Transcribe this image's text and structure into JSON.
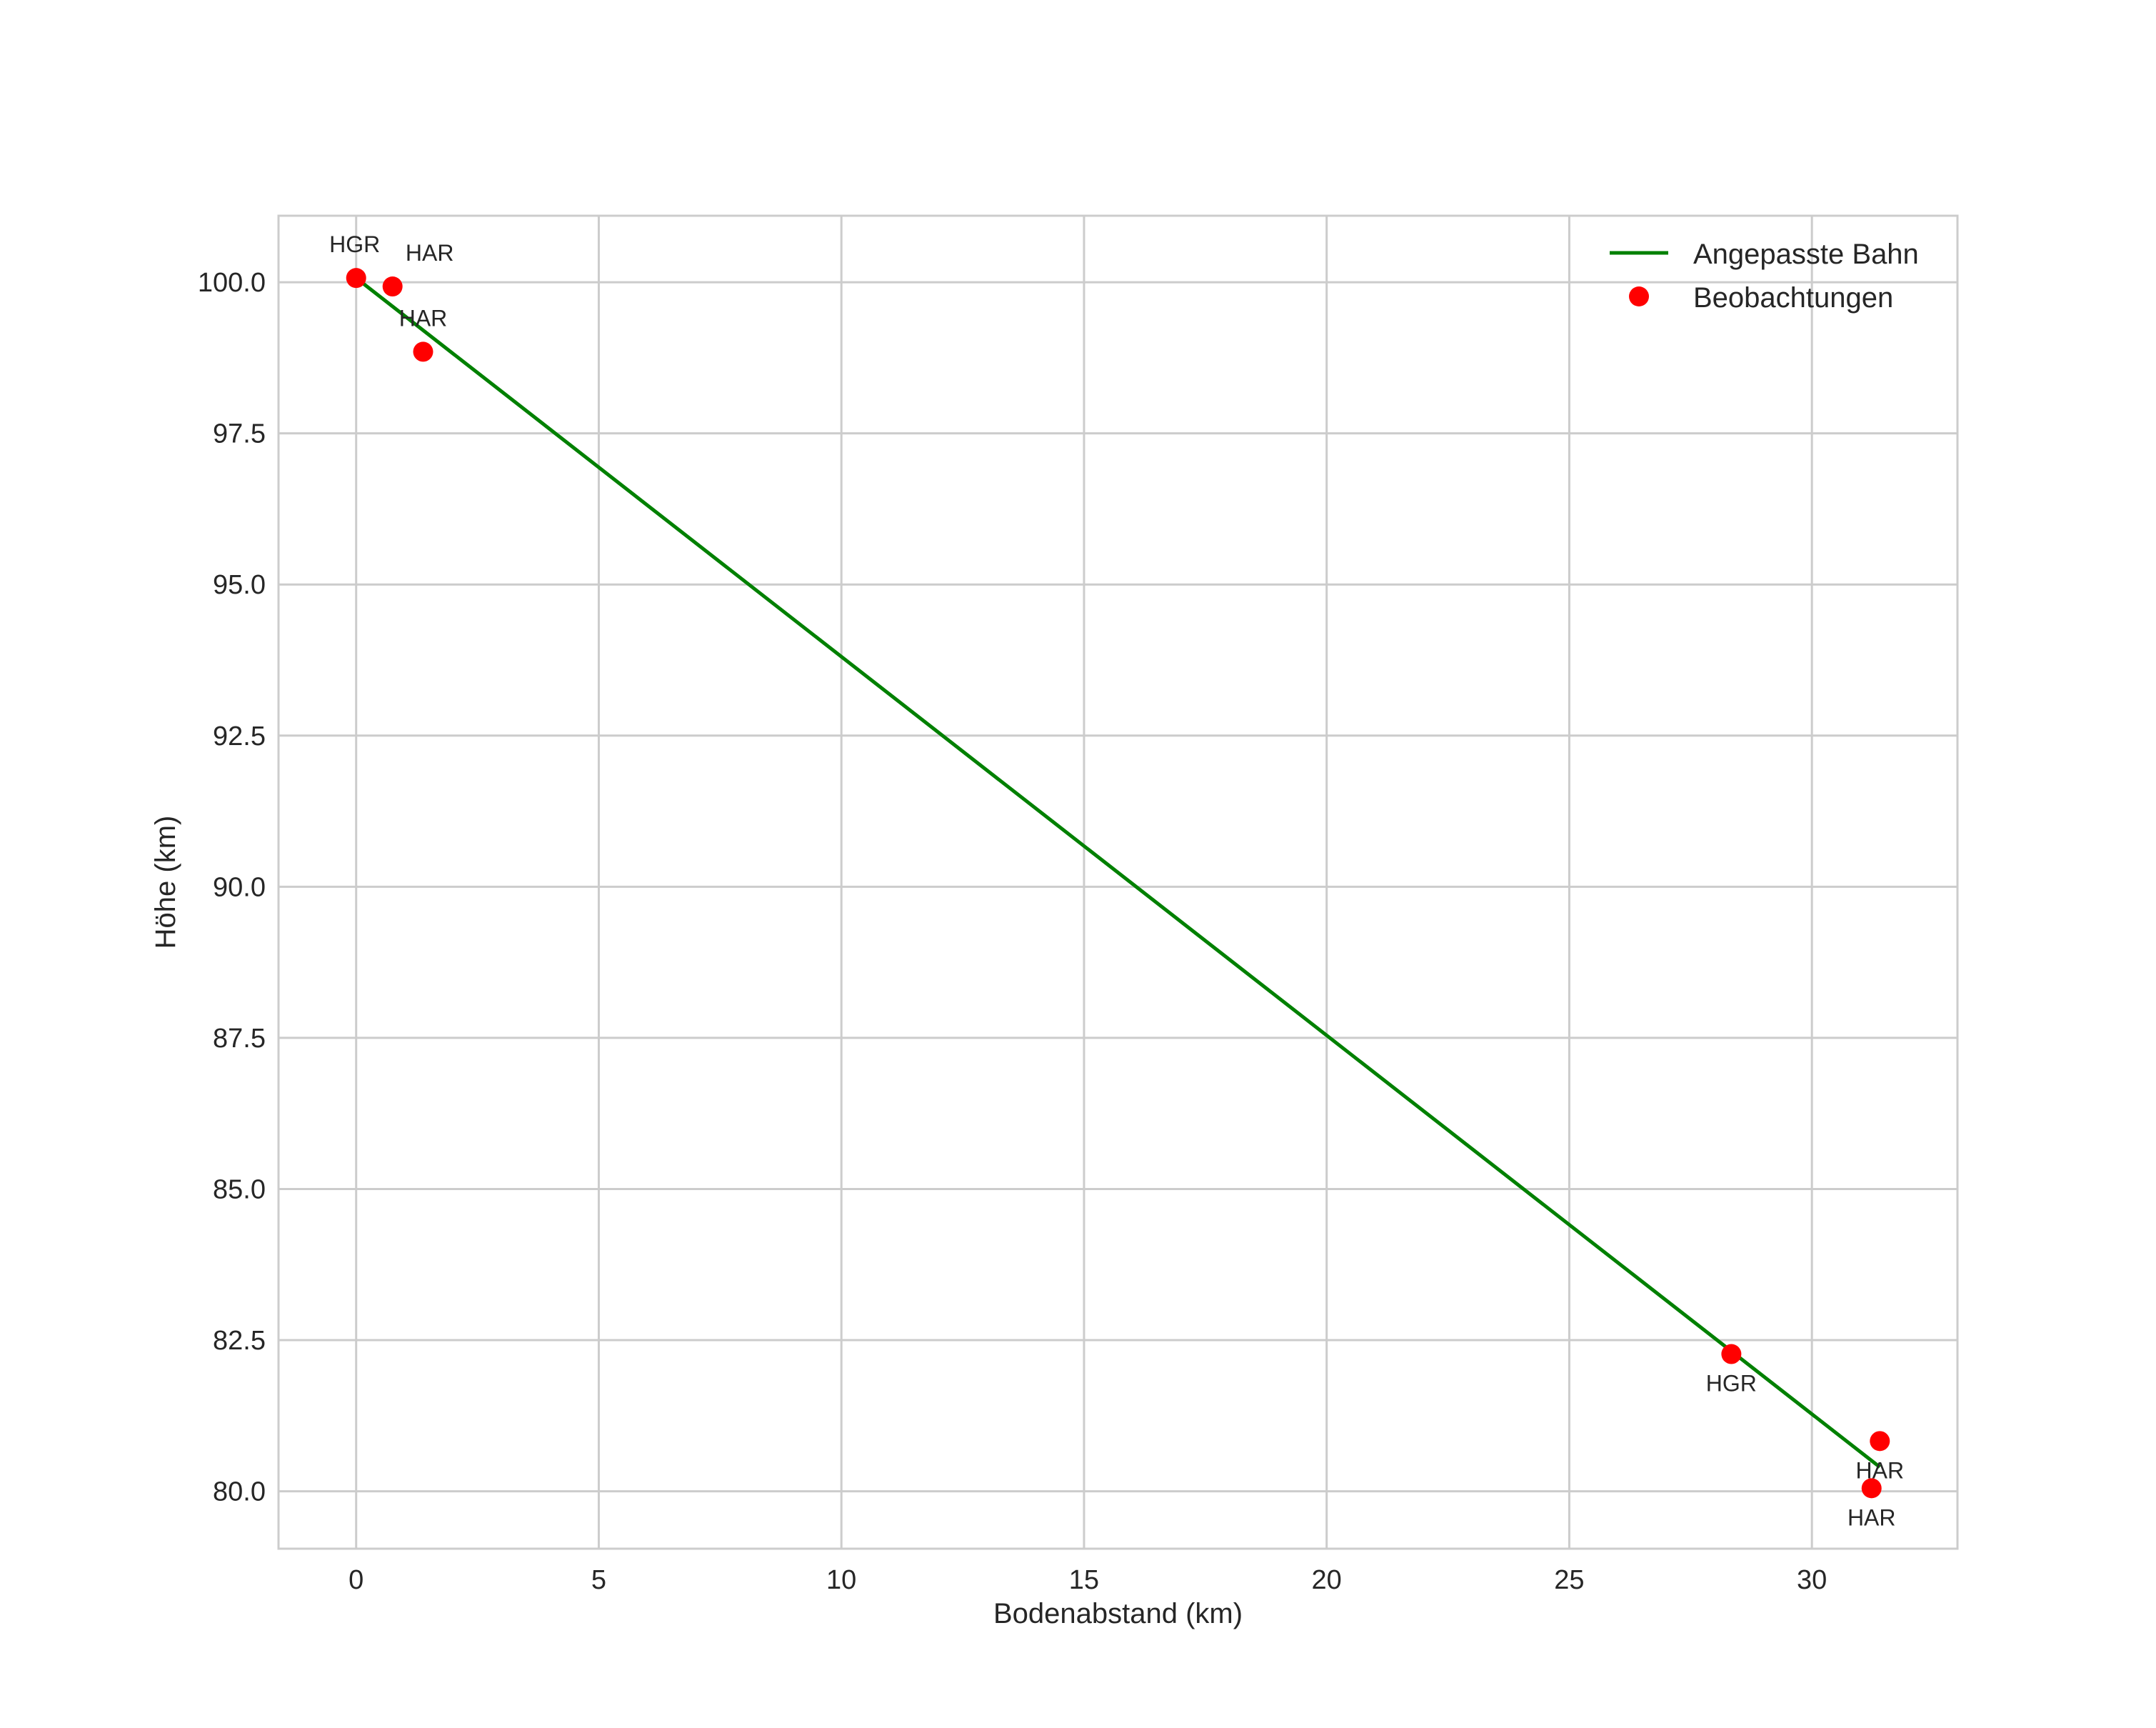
{
  "chart_data": {
    "type": "line",
    "title": "",
    "xlabel": "Bodenabstand (km)",
    "ylabel": "Höhe (km)",
    "xlim": [
      -1.6,
      33.0
    ],
    "ylim": [
      79.05,
      101.1
    ],
    "xticks": [
      0,
      5,
      10,
      15,
      20,
      25,
      30
    ],
    "xtick_labels": [
      "0",
      "5",
      "10",
      "15",
      "20",
      "25",
      "30"
    ],
    "yticks": [
      80.0,
      82.5,
      85.0,
      87.5,
      90.0,
      92.5,
      95.0,
      97.5,
      100.0
    ],
    "ytick_labels": [
      "80.0",
      "82.5",
      "85.0",
      "87.5",
      "90.0",
      "92.5",
      "95.0",
      "97.5",
      "100.0"
    ],
    "grid": true,
    "legend_position": "upper right",
    "series": [
      {
        "name": "Angepasste Bahn",
        "type": "line",
        "color": "#008000",
        "x": [
          0.0,
          31.4
        ],
        "y": [
          100.07,
          80.4
        ]
      },
      {
        "name": "Beobachtungen",
        "type": "scatter",
        "color": "#ff0000",
        "x": [
          0.0,
          0.75,
          1.38,
          28.34,
          31.4,
          31.23
        ],
        "y": [
          100.07,
          99.93,
          98.85,
          82.27,
          80.83,
          80.05
        ],
        "labels": [
          "HGR",
          "HAR",
          "HAR",
          "HGR",
          "HAR",
          "HAR"
        ]
      }
    ]
  },
  "legend": {
    "items": [
      {
        "label": "Angepasste Bahn"
      },
      {
        "label": "Beobachtungen"
      }
    ]
  }
}
